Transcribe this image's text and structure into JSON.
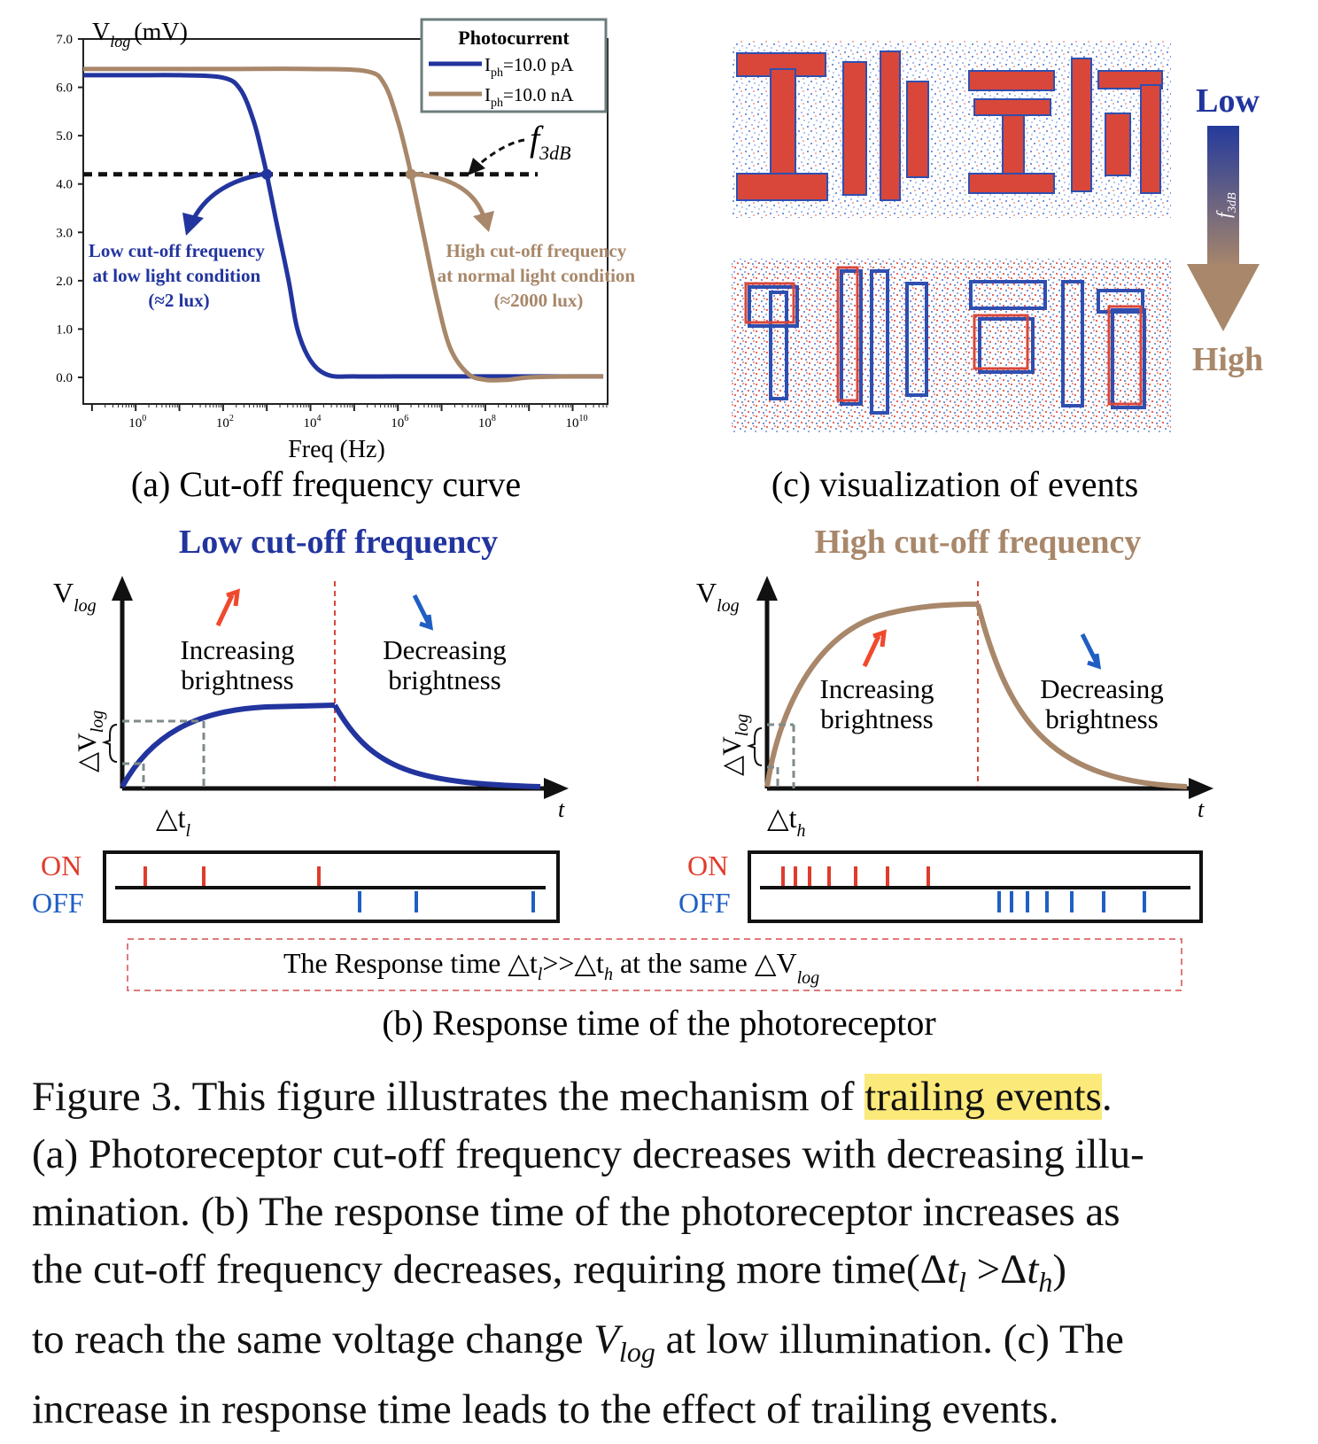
{
  "panel_a": {
    "y_axis_title": "V",
    "y_axis_title_sub": "log",
    "y_axis_unit": "(mV)",
    "x_axis_title": "Freq (Hz)",
    "caption": "(a) Cut-off frequency curve",
    "legend": {
      "title": "Photocurrent",
      "items": [
        {
          "pre": "I",
          "sub": "ph",
          "post": "=10.0 pA",
          "color": "#22349e"
        },
        {
          "pre": "I",
          "sub": "ph",
          "post": "=10.0 nA",
          "color": "#a8876a"
        }
      ]
    },
    "f3db_label": "f",
    "f3db_sub": "3dB",
    "low_note": [
      "Low cut-off frequency",
      "at low light condition",
      "(≈2 lux)"
    ],
    "high_note": [
      "High cut-off frequency",
      "at normal light condition",
      "(≈2000 lux)"
    ],
    "y_ticks": [
      "0.0",
      "1.0",
      "2.0",
      "3.0",
      "4.0",
      "5.0",
      "6.0",
      "7.0"
    ],
    "x_ticks": [
      {
        "base": "10",
        "exp": "0"
      },
      {
        "base": "10",
        "exp": "2"
      },
      {
        "base": "10",
        "exp": "4"
      },
      {
        "base": "10",
        "exp": "6"
      },
      {
        "base": "10",
        "exp": "8"
      },
      {
        "base": "10",
        "exp": "10"
      }
    ]
  },
  "chart_data": {
    "type": "line",
    "x": [
      -1.2,
      0,
      1,
      2,
      2.5,
      2.9,
      3.2,
      3.5,
      4,
      4.5,
      5,
      6,
      6.5,
      7,
      7.3,
      7.6,
      8,
      8.5,
      9,
      10,
      10.7
    ],
    "xlabel": "Freq (Hz)",
    "ylabel": "V_log (mV)",
    "xscale": "log10",
    "xlim": [
      -1.2,
      10.8
    ],
    "ylim": [
      0,
      7
    ],
    "hline": 4.2,
    "series": [
      {
        "name": "I_ph=10.0 pA",
        "color": "#22349e",
        "points": [
          [
            -1.2,
            6.25
          ],
          [
            0,
            6.25
          ],
          [
            1,
            6.25
          ],
          [
            2,
            6.2
          ],
          [
            2.4,
            5.95
          ],
          [
            2.7,
            5.3
          ],
          [
            2.9,
            4.6
          ],
          [
            3.0,
            4.2
          ],
          [
            3.2,
            3.3
          ],
          [
            3.5,
            2.0
          ],
          [
            3.7,
            1.0
          ],
          [
            4.0,
            0.35
          ],
          [
            4.4,
            0.05
          ],
          [
            5,
            0.02
          ],
          [
            6,
            0.02
          ],
          [
            8,
            0.02
          ],
          [
            10,
            0.02
          ],
          [
            10.7,
            0.02
          ]
        ]
      },
      {
        "name": "I_ph=10.0 nA",
        "color": "#a8876a",
        "points": [
          [
            -1.2,
            6.38
          ],
          [
            0,
            6.38
          ],
          [
            2,
            6.38
          ],
          [
            4,
            6.38
          ],
          [
            5.3,
            6.33
          ],
          [
            5.7,
            6.05
          ],
          [
            6,
            5.3
          ],
          [
            6.2,
            4.6
          ],
          [
            6.3,
            4.2
          ],
          [
            6.6,
            2.9
          ],
          [
            6.9,
            1.6
          ],
          [
            7.2,
            0.6
          ],
          [
            7.6,
            0.08
          ],
          [
            8,
            -0.05
          ],
          [
            8.5,
            -0.05
          ],
          [
            9,
            0.0
          ],
          [
            10,
            0.02
          ],
          [
            10.7,
            0.02
          ]
        ]
      }
    ]
  },
  "panel_b": {
    "caption": "(b) Response time of the photoreceptor",
    "left_title": "Low cut-off frequency",
    "right_title": "High cut-off frequency",
    "vlog": "V",
    "vlog_sub": "log",
    "dv": "△V",
    "dv_sub": "log",
    "t_label": "t",
    "increasing": [
      "Increasing",
      "brightness"
    ],
    "decreasing": [
      "Decreasing",
      "brightness"
    ],
    "dt_l": "△t",
    "dt_l_sub": "l",
    "dt_h": "△t",
    "dt_h_sub": "h",
    "on": "ON",
    "off": "OFF",
    "response_note": {
      "a": "The Response time △t",
      "a_sub": "l",
      "b": ">>△t",
      "b_sub": "h",
      "c": " at the same △V",
      "c_sub": "log"
    }
  },
  "panel_c": {
    "caption": "(c) visualization of events",
    "low": "Low",
    "high": "High",
    "f_label": "f",
    "f_sub": "3dB"
  },
  "caption": {
    "line1_a": "Figure 3. This figure illustrates the mechanism of ",
    "line1_hl": "trailing events",
    "line1_b": ".",
    "line2": "(a) Photoreceptor cut-off frequency decreases with decreasing illu-",
    "line3": "mination. (b) The response time of the photoreceptor increases as",
    "line4_a": "the cut-off frequency decreases, requiring more time(Δ",
    "line4_t1": "t",
    "line4_s1": "l",
    "line4_gt": " >Δ",
    "line4_t2": "t",
    "line4_s2": "h",
    "line4_b": ")",
    "line5_a": "to reach the same voltage change ",
    "line5_v": "V",
    "line5_s": "log",
    "line5_b": " at low illumination. (c) The",
    "line6": "increase in response time leads to the effect of trailing events."
  }
}
